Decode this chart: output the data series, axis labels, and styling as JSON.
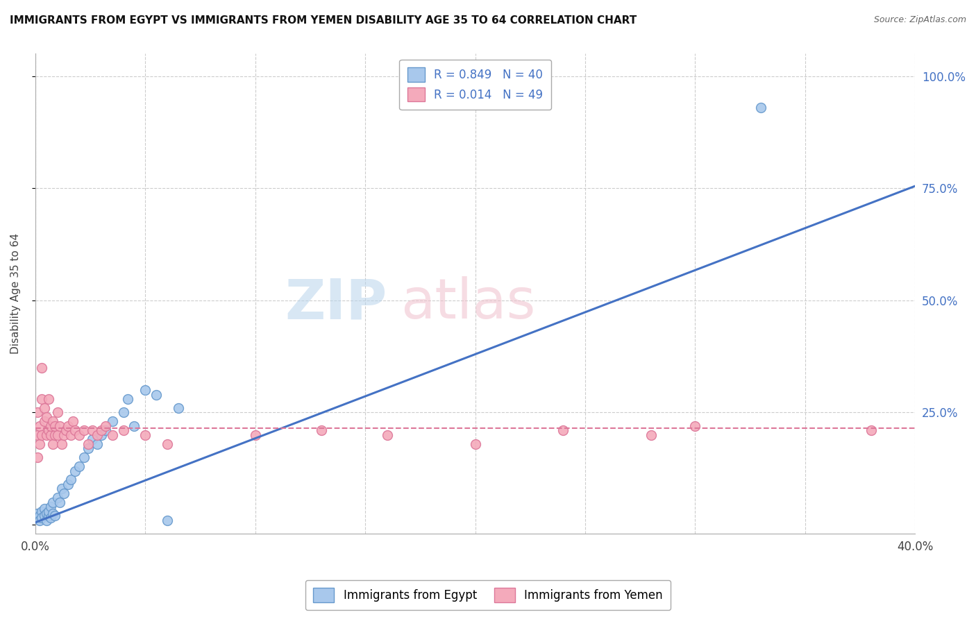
{
  "title": "IMMIGRANTS FROM EGYPT VS IMMIGRANTS FROM YEMEN DISABILITY AGE 35 TO 64 CORRELATION CHART",
  "source": "Source: ZipAtlas.com",
  "ylabel": "Disability Age 35 to 64",
  "xlim": [
    0.0,
    0.4
  ],
  "ylim": [
    -0.02,
    1.05
  ],
  "egypt_color": "#A8C8EC",
  "egypt_edge_color": "#6699CC",
  "yemen_color": "#F4AABB",
  "yemen_edge_color": "#DD7799",
  "egypt_R": 0.849,
  "egypt_N": 40,
  "yemen_R": 0.014,
  "yemen_N": 49,
  "egypt_line_color": "#4472C4",
  "yemen_line_color": "#DD7799",
  "ytick_color": "#4472C4",
  "background_color": "#FFFFFF",
  "grid_color": "#CCCCCC",
  "egypt_scatter_x": [
    0.001,
    0.001,
    0.002,
    0.002,
    0.003,
    0.003,
    0.004,
    0.004,
    0.005,
    0.005,
    0.006,
    0.006,
    0.007,
    0.007,
    0.008,
    0.008,
    0.009,
    0.01,
    0.011,
    0.012,
    0.013,
    0.015,
    0.016,
    0.018,
    0.02,
    0.022,
    0.024,
    0.026,
    0.028,
    0.03,
    0.032,
    0.035,
    0.04,
    0.042,
    0.045,
    0.05,
    0.055,
    0.06,
    0.065,
    0.33
  ],
  "egypt_scatter_y": [
    0.025,
    0.015,
    0.02,
    0.01,
    0.03,
    0.015,
    0.035,
    0.02,
    0.025,
    0.01,
    0.02,
    0.03,
    0.015,
    0.04,
    0.025,
    0.05,
    0.02,
    0.06,
    0.05,
    0.08,
    0.07,
    0.09,
    0.1,
    0.12,
    0.13,
    0.15,
    0.17,
    0.19,
    0.18,
    0.2,
    0.21,
    0.23,
    0.25,
    0.28,
    0.22,
    0.3,
    0.29,
    0.01,
    0.26,
    0.93
  ],
  "yemen_scatter_x": [
    0.001,
    0.001,
    0.001,
    0.002,
    0.002,
    0.003,
    0.003,
    0.003,
    0.004,
    0.004,
    0.005,
    0.005,
    0.006,
    0.006,
    0.007,
    0.007,
    0.008,
    0.008,
    0.009,
    0.009,
    0.01,
    0.01,
    0.011,
    0.012,
    0.013,
    0.014,
    0.015,
    0.016,
    0.017,
    0.018,
    0.02,
    0.022,
    0.024,
    0.026,
    0.028,
    0.03,
    0.032,
    0.035,
    0.04,
    0.05,
    0.06,
    0.1,
    0.13,
    0.16,
    0.2,
    0.24,
    0.28,
    0.3,
    0.38
  ],
  "yemen_scatter_y": [
    0.15,
    0.2,
    0.25,
    0.18,
    0.22,
    0.2,
    0.28,
    0.35,
    0.23,
    0.26,
    0.2,
    0.24,
    0.21,
    0.28,
    0.2,
    0.22,
    0.18,
    0.23,
    0.2,
    0.22,
    0.2,
    0.25,
    0.22,
    0.18,
    0.2,
    0.21,
    0.22,
    0.2,
    0.23,
    0.21,
    0.2,
    0.21,
    0.18,
    0.21,
    0.2,
    0.21,
    0.22,
    0.2,
    0.21,
    0.2,
    0.18,
    0.2,
    0.21,
    0.2,
    0.18,
    0.21,
    0.2,
    0.22,
    0.21
  ],
  "egypt_trend_x": [
    0.0,
    0.4
  ],
  "egypt_trend_y": [
    0.005,
    0.755
  ],
  "yemen_trend_x": [
    0.0,
    0.4
  ],
  "yemen_trend_y": [
    0.215,
    0.215
  ]
}
